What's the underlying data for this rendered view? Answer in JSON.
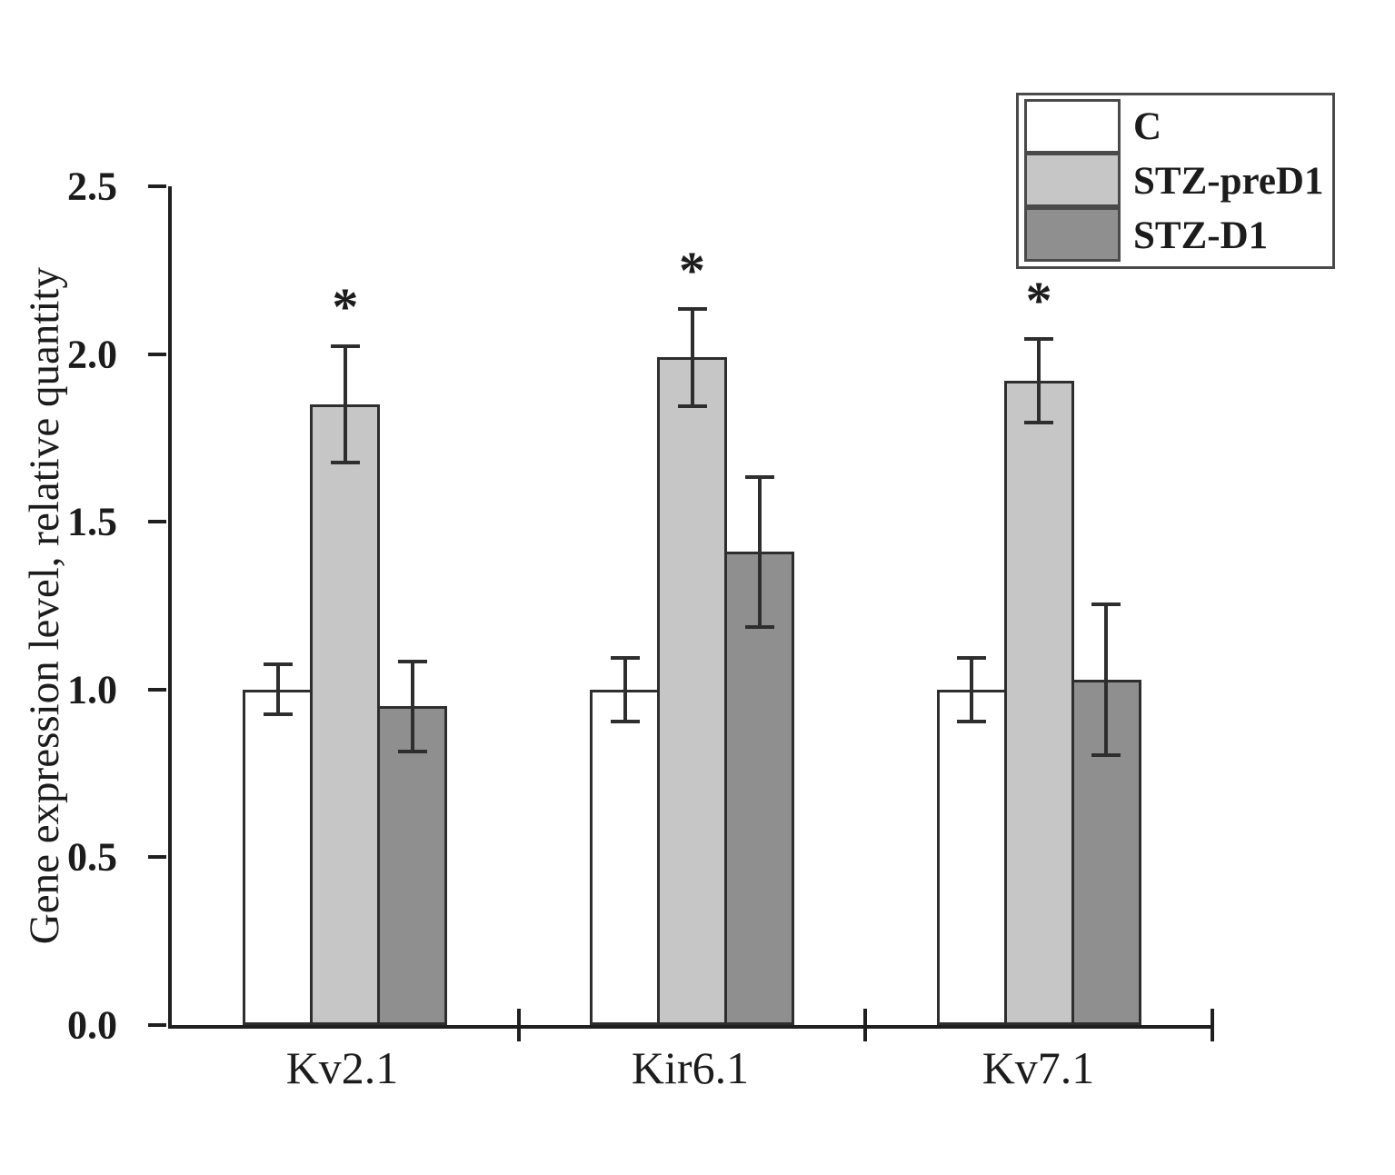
{
  "chart_data": {
    "type": "bar",
    "title": "",
    "xlabel": "",
    "ylabel": "Gene expression level, relative quantity",
    "ylim": [
      0,
      2.5
    ],
    "yticks": [
      0.0,
      0.5,
      1.0,
      1.5,
      2.0,
      2.5
    ],
    "grid": false,
    "categories": [
      "Kv2.1",
      "Kir6.1",
      "Kv7.1"
    ],
    "series": [
      {
        "name": "C",
        "color": "#ffffff",
        "values": [
          1.0,
          1.0,
          1.0
        ],
        "errors": [
          0.08,
          0.1,
          0.1
        ],
        "significant": [
          false,
          false,
          false
        ]
      },
      {
        "name": "STZ-preD1",
        "color": "#c6c6c6",
        "values": [
          1.85,
          1.99,
          1.92
        ],
        "errors": [
          0.18,
          0.15,
          0.13
        ],
        "significant": [
          true,
          true,
          true
        ]
      },
      {
        "name": "STZ-D1",
        "color": "#8f8f8f",
        "values": [
          0.95,
          1.41,
          1.03
        ],
        "errors": [
          0.14,
          0.23,
          0.23
        ],
        "significant": [
          false,
          false,
          false
        ]
      }
    ],
    "legend": {
      "position": "top-right",
      "entries": [
        "C",
        "STZ-preD1",
        "STZ-D1"
      ]
    },
    "significance_marker": "*"
  }
}
